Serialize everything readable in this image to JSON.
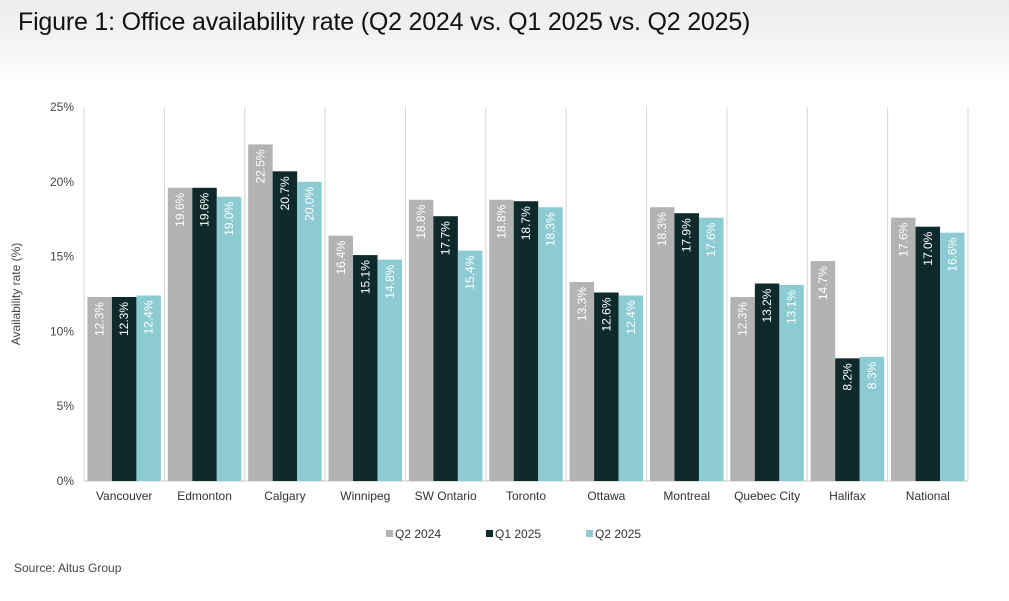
{
  "title": "Figure 1: Office availability rate (Q2 2024 vs. Q1 2025 vs. Q2 2025)",
  "source": "Source: Altus Group",
  "chart_data": {
    "type": "bar",
    "categories": [
      "Vancouver",
      "Edmonton",
      "Calgary",
      "Winnipeg",
      "SW Ontario",
      "Toronto",
      "Ottawa",
      "Montreal",
      "Quebec City",
      "Halifax",
      "National"
    ],
    "series": [
      {
        "name": "Q2 2024",
        "color": "#b3b3b3",
        "values": [
          12.3,
          19.6,
          22.5,
          16.4,
          18.8,
          18.8,
          13.3,
          18.3,
          12.3,
          14.7,
          17.6
        ],
        "labels": [
          "12.3%",
          "19.6%",
          "22.5%",
          "16.4%",
          "18.8%",
          "18.8%",
          "13.3%",
          "18.3%",
          "12.3%",
          "14.7%",
          "17.6%"
        ]
      },
      {
        "name": "Q1 2025",
        "color": "#0f2a2c",
        "values": [
          12.3,
          19.6,
          20.7,
          15.1,
          17.7,
          18.7,
          12.6,
          17.9,
          13.2,
          8.2,
          17.0
        ],
        "labels": [
          "12.3%",
          "19.6%",
          "20.7%",
          "15.1%",
          "17.7%",
          "18.7%",
          "12.6%",
          "17.9%",
          "13.2%",
          "8.2%",
          "17.0%"
        ]
      },
      {
        "name": "Q2 2025",
        "color": "#8ccbd1",
        "values": [
          12.4,
          19.0,
          20.0,
          14.8,
          15.4,
          18.3,
          12.4,
          17.6,
          13.1,
          8.3,
          16.6
        ],
        "labels": [
          "12.4%",
          "19.0%",
          "20.0%",
          "14.8%",
          "15.4%",
          "18.3%",
          "12.4%",
          "17.6%",
          "13.1%",
          "8.3%",
          "16.6%"
        ]
      }
    ],
    "ylabel": "Availability rate (%)",
    "xlabel": "",
    "ylim": [
      0,
      25
    ],
    "yticks": [
      0,
      5,
      10,
      15,
      20,
      25
    ],
    "ytick_labels": [
      "0%",
      "5%",
      "10%",
      "15%",
      "20%",
      "25%"
    ],
    "legend": "bottom-center",
    "grid": "vertical category separators",
    "label_color": "#ffffff"
  }
}
